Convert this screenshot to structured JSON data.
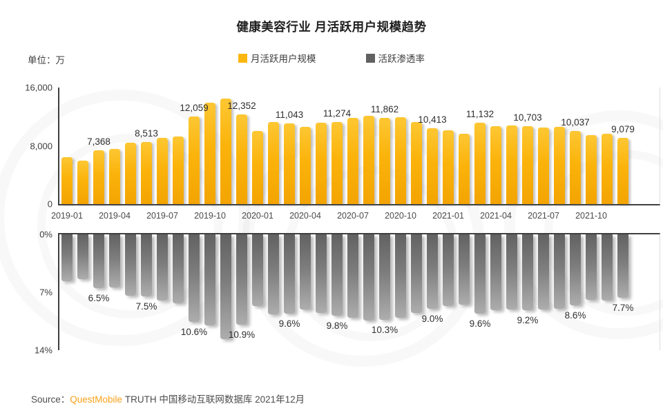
{
  "title": "健康美容行业 月活跃用户规模趋势",
  "unit_label": "单位：万",
  "legend": {
    "items": [
      {
        "label": "月活跃用户规模",
        "color": "#fbb70f"
      },
      {
        "label": "活跃渗透率",
        "color": "#616161"
      }
    ]
  },
  "source": {
    "prefix_label": "Source：",
    "brand": "QuestMobile",
    "suffix": "TRUTH 中国移动互联网数据库 2021年12月"
  },
  "chart_data": [
    {
      "type": "bar",
      "name": "monthly-active-users",
      "series_label": "月活跃用户规模",
      "unit": "万",
      "ylim": [
        0,
        16000
      ],
      "ytick_labels_top_to_bottom": [
        "16,000",
        "8,000",
        "0"
      ],
      "categories": [
        "2019-01",
        "2019-02",
        "2019-03",
        "2019-04",
        "2019-05",
        "2019-06",
        "2019-07",
        "2019-08",
        "2019-09",
        "2019-10",
        "2019-11",
        "2019-12",
        "2020-01",
        "2020-02",
        "2020-03",
        "2020-04",
        "2020-05",
        "2020-06",
        "2020-07",
        "2020-08",
        "2020-09",
        "2020-10",
        "2020-11",
        "2020-12",
        "2021-01",
        "2021-02",
        "2021-03",
        "2021-04",
        "2021-05",
        "2021-06",
        "2021-07",
        "2021-08",
        "2021-09",
        "2021-10",
        "2021-11",
        "2021-12"
      ],
      "xtick_labels": [
        "2019-01",
        "2019-04",
        "2019-07",
        "2019-10",
        "2020-01",
        "2020-04",
        "2020-07",
        "2020-10",
        "2021-01",
        "2021-04",
        "2021-07",
        "2021-10"
      ],
      "xtick_step": 3,
      "values": [
        6400,
        6000,
        7368,
        7600,
        8450,
        8513,
        9100,
        9300,
        12059,
        13950,
        14500,
        12352,
        10000,
        11300,
        11043,
        10650,
        11200,
        11274,
        11800,
        12100,
        11862,
        11900,
        11300,
        10413,
        10100,
        9700,
        11132,
        10700,
        10800,
        10703,
        10550,
        10650,
        10037,
        9500,
        9650,
        9079
      ],
      "data_labels": [
        "",
        "",
        "7,368",
        "",
        "",
        "8,513",
        "",
        "",
        "12,059",
        "",
        "",
        "12,352",
        "",
        "",
        "11,043",
        "",
        "",
        "11,274",
        "",
        "",
        "11,862",
        "",
        "",
        "10,413",
        "",
        "",
        "11,132",
        "",
        "",
        "10,703",
        "",
        "",
        "10,037",
        "",
        "",
        "9,079"
      ],
      "bar_color": "#fbb40d"
    },
    {
      "type": "bar",
      "name": "active-penetration-rate",
      "series_label": "活跃渗透率",
      "inverted": true,
      "ylim": [
        0,
        14
      ],
      "ytick_labels_top_to_bottom": [
        "0%",
        "7%",
        "14%"
      ],
      "categories": [
        "2019-01",
        "2019-02",
        "2019-03",
        "2019-04",
        "2019-05",
        "2019-06",
        "2019-07",
        "2019-08",
        "2019-09",
        "2019-10",
        "2019-11",
        "2019-12",
        "2020-01",
        "2020-02",
        "2020-03",
        "2020-04",
        "2020-05",
        "2020-06",
        "2020-07",
        "2020-08",
        "2020-09",
        "2020-10",
        "2020-11",
        "2020-12",
        "2021-01",
        "2021-02",
        "2021-03",
        "2021-04",
        "2021-05",
        "2021-06",
        "2021-07",
        "2021-08",
        "2021-09",
        "2021-10",
        "2021-11",
        "2021-12"
      ],
      "values": [
        5.7,
        5.4,
        6.5,
        6.4,
        7.4,
        7.5,
        8.0,
        8.3,
        10.6,
        11.0,
        12.7,
        10.9,
        8.7,
        9.7,
        9.6,
        9.1,
        9.5,
        9.8,
        10.1,
        10.4,
        10.3,
        10.1,
        9.5,
        9.0,
        8.7,
        8.5,
        9.6,
        9.2,
        9.1,
        9.2,
        9.1,
        9.0,
        8.6,
        7.9,
        8.0,
        7.7
      ],
      "data_labels": [
        "",
        "",
        "6.5%",
        "",
        "",
        "7.5%",
        "",
        "",
        "10.6%",
        "",
        "",
        "10.9%",
        "",
        "",
        "9.6%",
        "",
        "",
        "9.8%",
        "",
        "",
        "10.3%",
        "",
        "",
        "9.0%",
        "",
        "",
        "9.6%",
        "",
        "",
        "9.2%",
        "",
        "",
        "8.6%",
        "",
        "",
        "7.7%"
      ],
      "bar_color": "#7d7d7d"
    }
  ]
}
